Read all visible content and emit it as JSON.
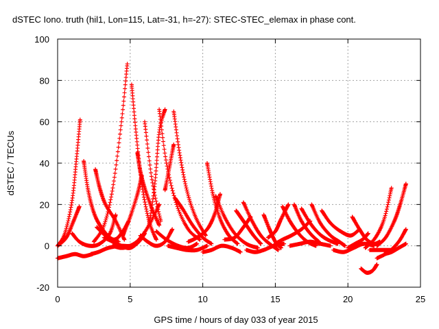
{
  "chart_data": {
    "type": "scatter",
    "title": "dSTEC Iono. truth (hil1, Lon=115, Lat=-31, h=-27): STEC-STEC_elemax in phase cont.",
    "xlabel": "GPS time / hours of day 033 of year 2015",
    "ylabel": "dSTEC  / TECUs",
    "xlim": [
      0,
      25
    ],
    "ylim": [
      -20,
      100
    ],
    "xticks": [
      0,
      5,
      10,
      15,
      20,
      25
    ],
    "yticks": [
      -20,
      0,
      20,
      40,
      60,
      80,
      100
    ],
    "xtick_labels": [
      "0",
      "5",
      "10",
      "15",
      "20",
      "25"
    ],
    "ytick_labels": [
      "-20",
      "0",
      "20",
      "40",
      "60",
      "80",
      "100"
    ],
    "grid": true,
    "marker": "+",
    "color": "#ff0000",
    "arcs": [
      {
        "x": [
          0.0,
          0.6,
          1.1,
          1.5
        ],
        "y": [
          0,
          4,
          12,
          19
        ]
      },
      {
        "x": [
          0.0,
          0.5,
          1.0,
          1.3,
          1.55
        ],
        "y": [
          0,
          6,
          22,
          42,
          61
        ]
      },
      {
        "x": [
          0.0,
          0.6,
          1.2,
          1.8,
          2.4
        ],
        "y": [
          -6,
          -5,
          -4,
          -5,
          -4
        ]
      },
      {
        "x": [
          1.0,
          1.5,
          2.2,
          2.9,
          3.6,
          4.0
        ],
        "y": [
          6,
          2,
          0,
          1,
          6,
          15
        ]
      },
      {
        "x": [
          1.8,
          2.1,
          2.5,
          3.0,
          3.6,
          4.2
        ],
        "y": [
          41,
          27,
          16,
          9,
          4,
          2
        ]
      },
      {
        "x": [
          2.3,
          2.8,
          3.5,
          4.3,
          5.0,
          5.5
        ],
        "y": [
          -4,
          -3,
          -1,
          0,
          0,
          2
        ]
      },
      {
        "x": [
          2.5,
          3.2,
          3.8,
          4.4,
          4.8
        ],
        "y": [
          2,
          10,
          28,
          60,
          88
        ]
      },
      {
        "x": [
          2.6,
          2.9,
          3.3,
          4.0,
          4.6
        ],
        "y": [
          37,
          28,
          20,
          12,
          3
        ]
      },
      {
        "x": [
          2.7,
          3.3,
          3.9,
          4.4,
          4.9
        ],
        "y": [
          9,
          5,
          3,
          6,
          12
        ]
      },
      {
        "x": [
          3.2,
          3.8,
          4.4,
          5.0,
          5.6,
          6.0
        ],
        "y": [
          4,
          2,
          0,
          -1,
          2,
          6
        ]
      },
      {
        "x": [
          3.8,
          4.4,
          5.0,
          5.6,
          6.3,
          7.0
        ],
        "y": [
          0,
          -1,
          0,
          3,
          10,
          20
        ]
      },
      {
        "x": [
          4.5,
          5.0,
          5.5,
          5.8
        ],
        "y": [
          5,
          14,
          25,
          34
        ]
      },
      {
        "x": [
          5.1,
          5.4,
          5.8,
          6.3,
          6.8
        ],
        "y": [
          78,
          55,
          30,
          12,
          3
        ]
      },
      {
        "x": [
          5.5,
          5.7,
          6.0,
          6.5,
          7.0
        ],
        "y": [
          45,
          36,
          28,
          18,
          10
        ]
      },
      {
        "x": [
          6.0,
          6.5,
          7.1
        ],
        "y": [
          60,
          32,
          12
        ]
      },
      {
        "x": [
          5.7,
          6.2,
          6.8,
          7.4,
          7.9
        ],
        "y": [
          5,
          2,
          0,
          2,
          8
        ]
      },
      {
        "x": [
          6.3,
          6.7,
          7.0,
          7.4
        ],
        "y": [
          10,
          30,
          55,
          66
        ]
      },
      {
        "x": [
          7.0,
          7.5,
          8.2,
          9.0,
          9.8
        ],
        "y": [
          66,
          40,
          20,
          8,
          3
        ]
      },
      {
        "x": [
          7.4,
          7.7,
          8.0
        ],
        "y": [
          27,
          38,
          49
        ]
      },
      {
        "x": [
          6.8,
          7.5,
          8.3,
          9.0,
          9.6
        ],
        "y": [
          7,
          3,
          0,
          -1,
          1
        ]
      },
      {
        "x": [
          8.0,
          8.4,
          8.9,
          9.5,
          10.2
        ],
        "y": [
          65,
          45,
          27,
          14,
          5
        ]
      },
      {
        "x": [
          7.6,
          8.2,
          8.9,
          9.6,
          10.3
        ],
        "y": [
          0,
          -1,
          -2,
          -2,
          0
        ]
      },
      {
        "x": [
          8.1,
          8.6,
          9.3,
          10.0,
          10.6
        ],
        "y": [
          23,
          18,
          10,
          4,
          1
        ]
      },
      {
        "x": [
          9.0,
          9.6,
          10.3,
          10.8,
          11.2
        ],
        "y": [
          2,
          4,
          8,
          15,
          25
        ]
      },
      {
        "x": [
          10.3,
          10.7,
          11.2,
          11.8,
          12.4
        ],
        "y": [
          40,
          25,
          13,
          5,
          1
        ]
      },
      {
        "x": [
          10.0,
          10.6,
          11.3,
          12.0,
          12.6
        ],
        "y": [
          -3,
          -2,
          0,
          -1,
          -3
        ]
      },
      {
        "x": [
          10.9,
          11.5,
          12.2,
          13.0,
          13.8
        ],
        "y": [
          24,
          14,
          6,
          1,
          -1
        ]
      },
      {
        "x": [
          11.5,
          12.2,
          12.8,
          13.3
        ],
        "y": [
          3,
          4,
          9,
          14
        ]
      },
      {
        "x": [
          12.3,
          12.6,
          13.0,
          13.5,
          14.0
        ],
        "y": [
          17,
          14,
          10,
          5,
          1
        ]
      },
      {
        "x": [
          12.8,
          13.4,
          14.0,
          14.6,
          15.2
        ],
        "y": [
          21,
          12,
          5,
          1,
          -2
        ]
      },
      {
        "x": [
          13.0,
          13.6,
          14.2,
          14.9,
          15.6
        ],
        "y": [
          -2,
          -3,
          -2,
          0,
          1
        ]
      },
      {
        "x": [
          14.2,
          14.6,
          15.0,
          15.4
        ],
        "y": [
          15,
          8,
          2,
          -1
        ]
      },
      {
        "x": [
          14.5,
          15.0,
          15.4,
          15.9
        ],
        "y": [
          4,
          7,
          13,
          20
        ]
      },
      {
        "x": [
          15.0,
          15.5,
          16.1,
          16.8,
          17.4
        ],
        "y": [
          1,
          3,
          5,
          8,
          12
        ]
      },
      {
        "x": [
          15.5,
          16.0,
          16.6,
          17.2,
          17.8
        ],
        "y": [
          19,
          12,
          6,
          2,
          0
        ]
      },
      {
        "x": [
          16.3,
          16.8,
          17.4,
          18.0
        ],
        "y": [
          20,
          12,
          6,
          2
        ]
      },
      {
        "x": [
          16.0,
          16.7,
          17.4,
          18.1,
          18.8
        ],
        "y": [
          0,
          1,
          2,
          1,
          0
        ]
      },
      {
        "x": [
          16.8,
          17.4,
          18.0,
          18.6,
          19.3
        ],
        "y": [
          18,
          11,
          6,
          3,
          1
        ]
      },
      {
        "x": [
          17.5,
          18.1,
          18.8,
          19.4,
          19.8
        ],
        "y": [
          20,
          11,
          5,
          2,
          0
        ]
      },
      {
        "x": [
          18.2,
          18.8,
          19.5,
          20.2,
          20.8
        ],
        "y": [
          17,
          11,
          7,
          5,
          8
        ]
      },
      {
        "x": [
          19.0,
          19.7,
          20.4,
          21.1,
          21.8
        ],
        "y": [
          -2,
          -3,
          -1,
          1,
          0
        ]
      },
      {
        "x": [
          20.3,
          20.8,
          21.3,
          21.8,
          22.2
        ],
        "y": [
          14,
          8,
          3,
          1,
          2
        ]
      },
      {
        "x": [
          20.0,
          20.5,
          21.0,
          21.4
        ],
        "y": [
          -1,
          1,
          3,
          6
        ]
      },
      {
        "x": [
          20.9,
          21.3,
          21.7,
          22.0
        ],
        "y": [
          -11,
          -13,
          -12,
          -9
        ]
      },
      {
        "x": [
          21.2,
          21.9,
          22.5,
          23.0
        ],
        "y": [
          -1,
          4,
          13,
          28
        ]
      },
      {
        "x": [
          21.5,
          22.0,
          22.6,
          23.0
        ],
        "y": [
          -2,
          -2,
          -2,
          -2
        ]
      },
      {
        "x": [
          22.0,
          22.6,
          23.2,
          23.6,
          24.0
        ],
        "y": [
          0,
          4,
          12,
          20,
          30
        ]
      },
      {
        "x": [
          22.5,
          23.0,
          23.5,
          24.0
        ],
        "y": [
          -4,
          -3,
          -1,
          1
        ]
      },
      {
        "x": [
          22.0,
          22.8,
          23.5,
          24.0
        ],
        "y": [
          -6,
          -3,
          2,
          8
        ]
      }
    ]
  }
}
